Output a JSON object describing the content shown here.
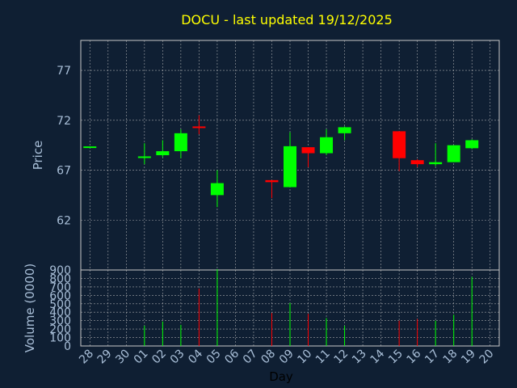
{
  "chart_data": {
    "type": "candlestick",
    "title": "DOCU - last updated 19/12/2025",
    "xlabel": "Day",
    "price_panel": {
      "ylabel": "Price",
      "ylim": [
        57,
        80
      ],
      "yticks": [
        62,
        67,
        72,
        77
      ],
      "grid": true
    },
    "volume_panel": {
      "ylabel": "Volume (0000)",
      "ylim": [
        0,
        900
      ],
      "yticks": [
        0,
        100,
        200,
        300,
        400,
        500,
        600,
        700,
        800,
        900
      ],
      "grid": true
    },
    "categories": [
      "28",
      "29",
      "30",
      "01",
      "02",
      "03",
      "04",
      "05",
      "06",
      "07",
      "08",
      "09",
      "10",
      "11",
      "12",
      "13",
      "14",
      "15",
      "16",
      "17",
      "18",
      "19",
      "20"
    ],
    "candles": [
      {
        "day": "28",
        "open": 69.3,
        "high": 69.3,
        "low": 69.3,
        "close": 69.3,
        "volume": 0
      },
      {
        "day": "01",
        "open": 68.3,
        "high": 69.7,
        "low": 67.6,
        "close": 68.3,
        "volume": 240
      },
      {
        "day": "02",
        "open": 68.5,
        "high": 70.0,
        "low": 68.3,
        "close": 68.9,
        "volume": 290
      },
      {
        "day": "03",
        "open": 68.9,
        "high": 71.1,
        "low": 68.2,
        "close": 70.7,
        "volume": 250
      },
      {
        "day": "04",
        "open": 71.3,
        "high": 72.5,
        "low": 70.6,
        "close": 71.2,
        "volume": 680
      },
      {
        "day": "05",
        "open": 64.5,
        "high": 67.0,
        "low": 63.3,
        "close": 65.7,
        "volume": 910
      },
      {
        "day": "08",
        "open": 66.0,
        "high": 66.0,
        "low": 64.2,
        "close": 65.8,
        "volume": 390
      },
      {
        "day": "09",
        "open": 65.3,
        "high": 70.8,
        "low": 65.3,
        "close": 69.4,
        "volume": 510
      },
      {
        "day": "10",
        "open": 69.3,
        "high": 69.3,
        "low": 67.3,
        "close": 68.7,
        "volume": 380
      },
      {
        "day": "11",
        "open": 68.7,
        "high": 71.1,
        "low": 68.5,
        "close": 70.3,
        "volume": 330
      },
      {
        "day": "12",
        "open": 70.7,
        "high": 71.4,
        "low": 70.0,
        "close": 71.3,
        "volume": 240
      },
      {
        "day": "15",
        "open": 70.9,
        "high": 70.9,
        "low": 66.9,
        "close": 68.2,
        "volume": 300
      },
      {
        "day": "16",
        "open": 68.0,
        "high": 68.1,
        "low": 67.3,
        "close": 67.6,
        "volume": 320
      },
      {
        "day": "17",
        "open": 67.6,
        "high": 69.7,
        "low": 67.4,
        "close": 67.8,
        "volume": 300
      },
      {
        "day": "18",
        "open": 67.8,
        "high": 69.5,
        "low": 67.8,
        "close": 69.5,
        "volume": 370
      },
      {
        "day": "19",
        "open": 69.2,
        "high": 70.1,
        "low": 69.1,
        "close": 70.0,
        "volume": 820
      }
    ],
    "colors": {
      "background": "#0f1f33",
      "up": "#00ff00",
      "down": "#ff0000",
      "grid": "#c8c8c8",
      "axis_text": "#a9bfd8",
      "title": "#ffff00"
    }
  }
}
